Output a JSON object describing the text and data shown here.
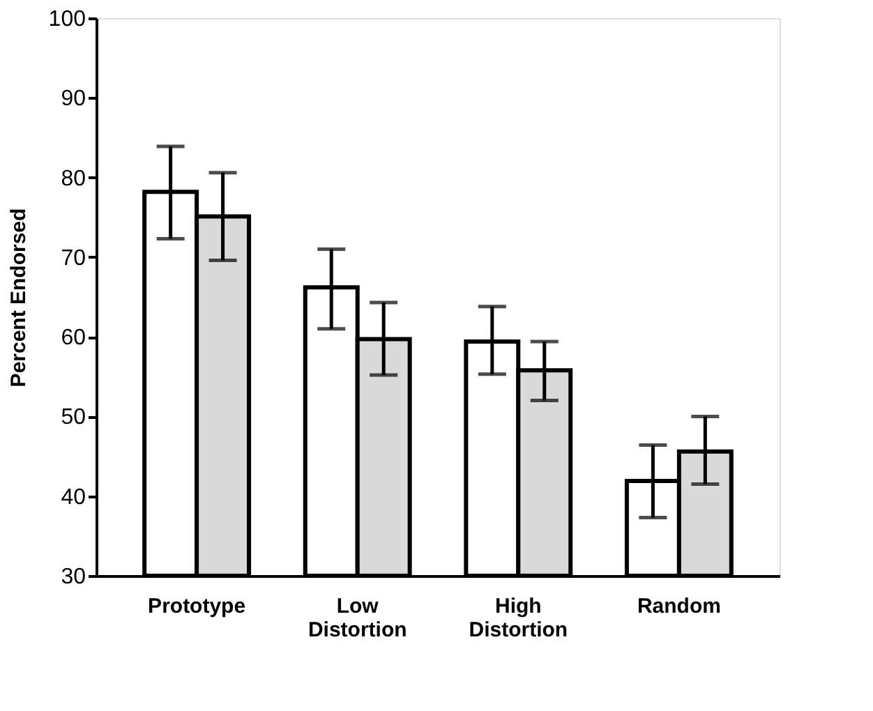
{
  "chart_data": {
    "type": "bar",
    "ylabel": "Percent Endorsed",
    "categories": [
      "Prototype",
      "Low\nDistortion",
      "High\nDistortion",
      "Random"
    ],
    "series": [
      {
        "color": "#ffffff",
        "values": [
          78.2,
          66.2,
          59.4,
          41.9
        ],
        "errors": [
          [
            72.3,
            83.9
          ],
          [
            61.0,
            71.0
          ],
          [
            55.3,
            63.8
          ],
          [
            37.3,
            46.4
          ]
        ]
      },
      {
        "color": "#d9d9d9",
        "values": [
          75.1,
          59.7,
          55.8,
          45.6
        ],
        "errors": [
          [
            69.6,
            80.6
          ],
          [
            55.2,
            64.3
          ],
          [
            52.0,
            59.4
          ],
          [
            41.5,
            50.0
          ]
        ]
      }
    ],
    "ylim": [
      30,
      100
    ],
    "yticks": [
      30,
      40,
      50,
      60,
      70,
      80,
      90,
      100
    ],
    "grid": false,
    "legend": false
  }
}
